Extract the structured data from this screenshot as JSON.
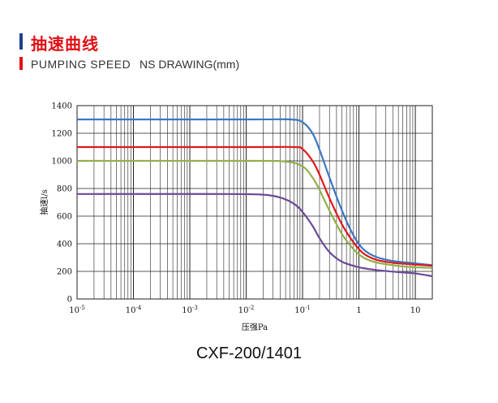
{
  "header": {
    "title_cn": "抽速曲线",
    "title_en": "PUMPING SPEED",
    "subtitle": "NS DRAWING(mm)"
  },
  "caption": "CXF-200/1401",
  "colors": {
    "brand_red": "#e00f14",
    "brand_blue": "#1f3e8c"
  },
  "chart_data": {
    "type": "line",
    "xlabel": "压强Pa",
    "ylabel": "抽速l/s",
    "xscale": "log",
    "xlim": [
      1e-05,
      20
    ],
    "ylim": [
      0,
      1400
    ],
    "xticks": [
      {
        "value": 1e-05,
        "base": "10",
        "exp": "-5"
      },
      {
        "value": 0.0001,
        "base": "10",
        "exp": "-4"
      },
      {
        "value": 0.001,
        "base": "10",
        "exp": "-3"
      },
      {
        "value": 0.01,
        "base": "10",
        "exp": "-2"
      },
      {
        "value": 0.1,
        "base": "10",
        "exp": "-1"
      },
      {
        "value": 1,
        "base": "1",
        "exp": ""
      },
      {
        "value": 10,
        "base": "10",
        "exp": ""
      }
    ],
    "yticks": [
      0,
      200,
      400,
      600,
      800,
      1000,
      1200,
      1400
    ],
    "grid": true,
    "series": [
      {
        "color": "#3a76c4",
        "points": [
          [
            1e-05,
            1300
          ],
          [
            0.01,
            1300
          ],
          [
            0.06,
            1300
          ],
          [
            0.1,
            1280
          ],
          [
            0.15,
            1200
          ],
          [
            0.2,
            1080
          ],
          [
            0.3,
            880
          ],
          [
            0.5,
            640
          ],
          [
            0.8,
            460
          ],
          [
            1.2,
            360
          ],
          [
            2,
            305
          ],
          [
            4,
            275
          ],
          [
            8,
            262
          ],
          [
            20,
            245
          ]
        ]
      },
      {
        "color": "#e0181c",
        "points": [
          [
            1e-05,
            1100
          ],
          [
            0.01,
            1100
          ],
          [
            0.07,
            1100
          ],
          [
            0.1,
            1085
          ],
          [
            0.15,
            1000
          ],
          [
            0.2,
            900
          ],
          [
            0.3,
            730
          ],
          [
            0.5,
            540
          ],
          [
            0.8,
            410
          ],
          [
            1.2,
            330
          ],
          [
            2,
            285
          ],
          [
            4,
            262
          ],
          [
            8,
            252
          ],
          [
            20,
            240
          ]
        ]
      },
      {
        "color": "#92b04a",
        "points": [
          [
            1e-05,
            1000
          ],
          [
            0.01,
            1000
          ],
          [
            0.05,
            995
          ],
          [
            0.1,
            960
          ],
          [
            0.15,
            880
          ],
          [
            0.2,
            790
          ],
          [
            0.3,
            640
          ],
          [
            0.5,
            470
          ],
          [
            0.8,
            360
          ],
          [
            1.2,
            300
          ],
          [
            2,
            265
          ],
          [
            4,
            245
          ],
          [
            8,
            232
          ],
          [
            20,
            225
          ]
        ]
      },
      {
        "color": "#6a4a96",
        "points": [
          [
            1e-05,
            760
          ],
          [
            0.005,
            760
          ],
          [
            0.02,
            755
          ],
          [
            0.04,
            735
          ],
          [
            0.07,
            690
          ],
          [
            0.1,
            630
          ],
          [
            0.15,
            530
          ],
          [
            0.2,
            440
          ],
          [
            0.3,
            340
          ],
          [
            0.5,
            270
          ],
          [
            1,
            230
          ],
          [
            2,
            210
          ],
          [
            5,
            195
          ],
          [
            10,
            185
          ],
          [
            20,
            165
          ]
        ]
      }
    ]
  }
}
